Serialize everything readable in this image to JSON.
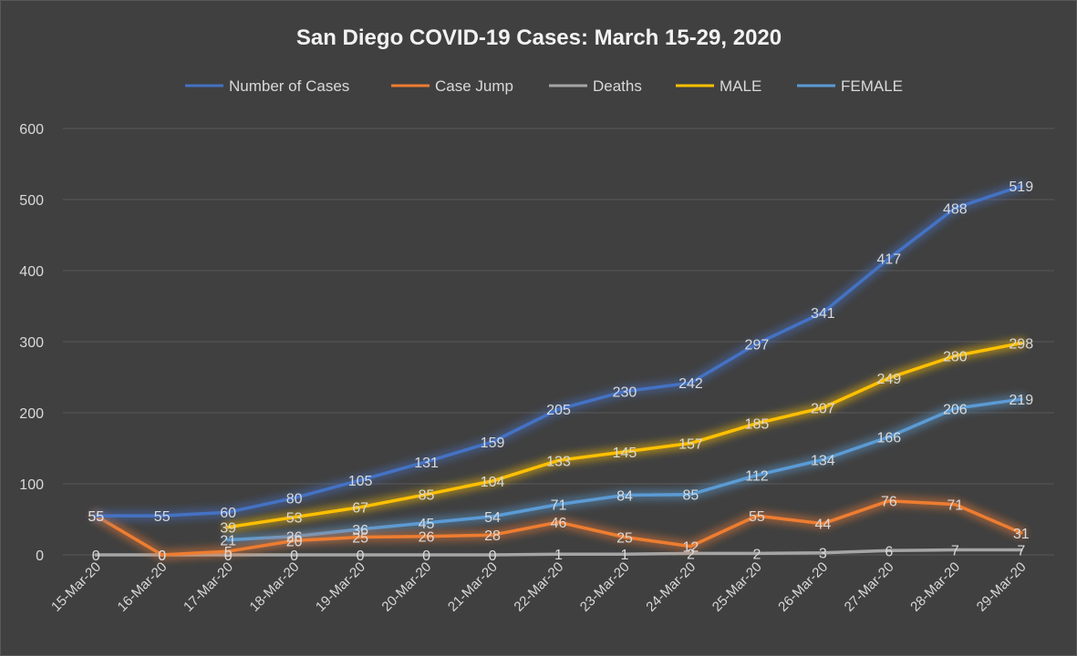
{
  "chart_data": {
    "type": "line",
    "title": "San Diego COVID-19 Cases: March 15-29, 2020",
    "xlabel": "",
    "ylabel": "",
    "ylim": [
      0,
      600
    ],
    "yticks": [
      0,
      100,
      200,
      300,
      400,
      500,
      600
    ],
    "grid": true,
    "legend_position": "top",
    "categories": [
      "15-Mar-20",
      "16-Mar-20",
      "17-Mar-20",
      "18-Mar-20",
      "19-Mar-20",
      "20-Mar-20",
      "21-Mar-20",
      "22-Mar-20",
      "23-Mar-20",
      "24-Mar-20",
      "25-Mar-20",
      "26-Mar-20",
      "27-Mar-20",
      "28-Mar-20",
      "29-Mar-20"
    ],
    "series": [
      {
        "name": "Number of Cases",
        "color": "#4472c4",
        "values": [
          55,
          55,
          60,
          80,
          105,
          131,
          159,
          205,
          230,
          242,
          297,
          341,
          417,
          488,
          519
        ]
      },
      {
        "name": "Case Jump",
        "color": "#ed7d31",
        "values": [
          55,
          0,
          5,
          20,
          25,
          26,
          28,
          46,
          25,
          12,
          55,
          44,
          76,
          71,
          31
        ]
      },
      {
        "name": "Deaths",
        "color": "#a5a5a5",
        "values": [
          0,
          0,
          0,
          0,
          0,
          0,
          0,
          1,
          1,
          2,
          2,
          3,
          6,
          7,
          7
        ]
      },
      {
        "name": "MALE",
        "color": "#ffc000",
        "values": [
          null,
          null,
          39,
          53,
          67,
          85,
          104,
          133,
          145,
          157,
          185,
          207,
          249,
          280,
          298
        ]
      },
      {
        "name": "FEMALE",
        "color": "#5b9bd5",
        "values": [
          null,
          null,
          21,
          26,
          36,
          45,
          54,
          71,
          84,
          85,
          112,
          134,
          166,
          206,
          219
        ]
      }
    ]
  }
}
